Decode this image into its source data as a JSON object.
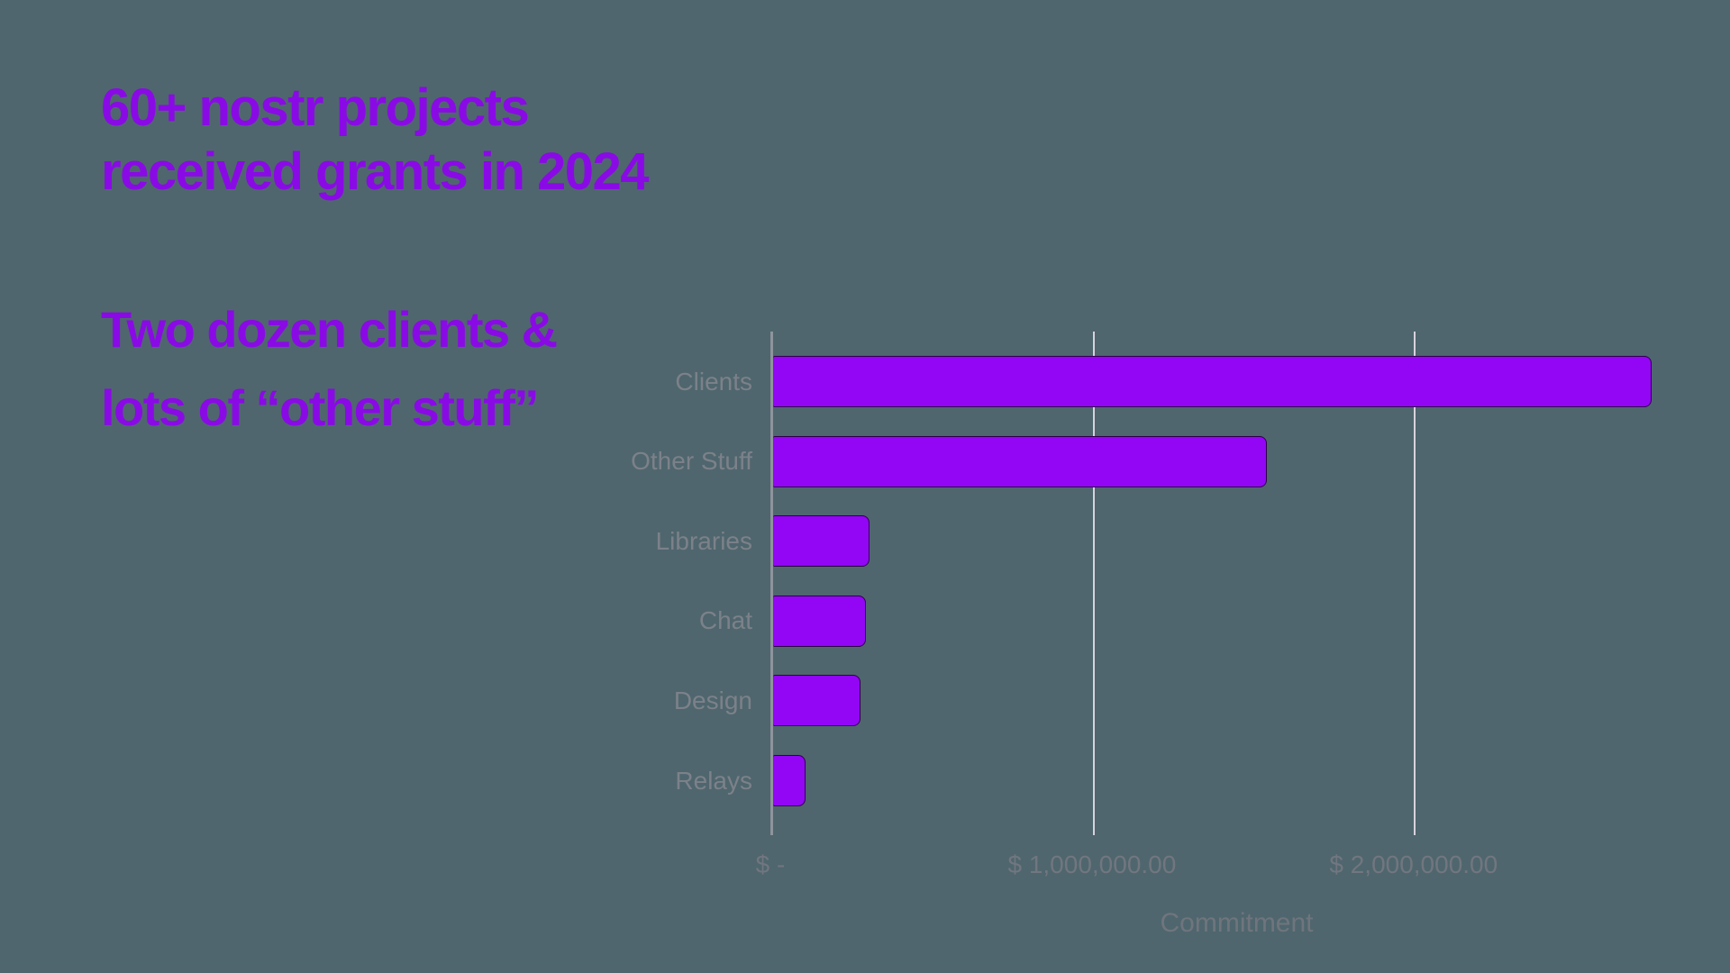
{
  "colors": {
    "background": "#4F666E",
    "title": "#8A0AE6",
    "bar": "#9206F5",
    "bar_border": "#2E0148",
    "cat_label": "#7C8189",
    "tick_label": "#71767F",
    "axis_title": "#6F757D",
    "gridline": "#D8D2DE",
    "axis_line": "#8F949C"
  },
  "headline": {
    "line1": "60+ nostr projects",
    "line2": "received grants in 2024"
  },
  "subheadline": {
    "line1": "Two dozen clients &",
    "line2": "lots of “other stuff”"
  },
  "chart_data": {
    "type": "bar",
    "orientation": "horizontal",
    "categories": [
      "Clients",
      "Other Stuff",
      "Libraries",
      "Chat",
      "Design",
      "Relays"
    ],
    "values": [
      2740000,
      1540000,
      300000,
      290000,
      272000,
      100000
    ],
    "title": "",
    "xlabel": "Commitment",
    "ylabel": "",
    "xlim": [
      0,
      2900000
    ],
    "x_ticks": [
      {
        "value": 0,
        "label": "$ -"
      },
      {
        "value": 1000000,
        "label": "$ 1,000,000.00"
      },
      {
        "value": 2000000,
        "label": "$ 2,000,000.00"
      }
    ],
    "grid": "vertical gridlines at value ticks",
    "legend": "none",
    "bar_color": "#9206F5"
  }
}
